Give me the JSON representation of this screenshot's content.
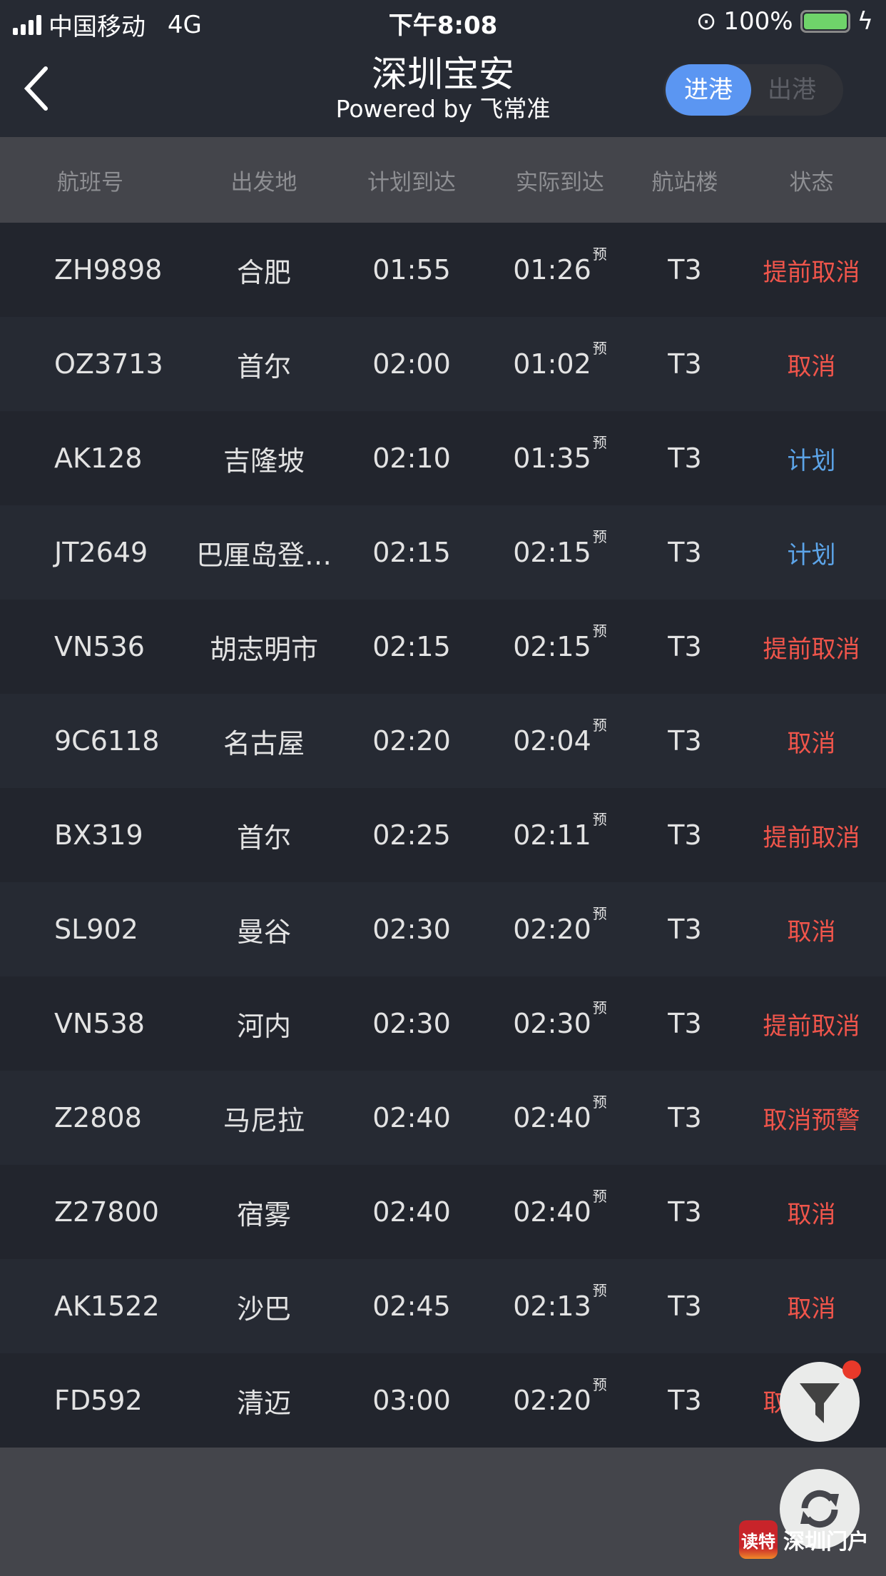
{
  "status_bar": {
    "carrier": "中国移动",
    "network": "4G",
    "time": "下午8:08",
    "battery": "100%",
    "battery_level": 1.0
  },
  "header": {
    "back_icon": "chevron-left",
    "title": "深圳宝安",
    "subtitle": "Powered by 飞常准",
    "toggle": {
      "arrivals": "进港",
      "departures": "出港",
      "selected": "进港"
    }
  },
  "colors": {
    "accent": "#5b96f2",
    "cancel": "#f0554b",
    "scheduled": "#5ca4e8"
  },
  "columns": [
    "航班号",
    "出发地",
    "计划到达",
    "实际到达",
    "航站楼",
    "状态"
  ],
  "estimate_mark": "预",
  "flights": [
    {
      "flight": "ZH9898",
      "origin": "合肥",
      "planned": "01:55",
      "actual": "01:26",
      "terminal": "T3",
      "status": "提前取消",
      "type": "cancel"
    },
    {
      "flight": "OZ3713",
      "origin": "首尔",
      "planned": "02:00",
      "actual": "01:02",
      "terminal": "T3",
      "status": "取消",
      "type": "cancel"
    },
    {
      "flight": "AK128",
      "origin": "吉隆坡",
      "planned": "02:10",
      "actual": "01:35",
      "terminal": "T3",
      "status": "计划",
      "type": "scheduled"
    },
    {
      "flight": "JT2649",
      "origin": "巴厘岛登…",
      "planned": "02:15",
      "actual": "02:15",
      "terminal": "T3",
      "status": "计划",
      "type": "scheduled"
    },
    {
      "flight": "VN536",
      "origin": "胡志明市",
      "planned": "02:15",
      "actual": "02:15",
      "terminal": "T3",
      "status": "提前取消",
      "type": "cancel"
    },
    {
      "flight": "9C6118",
      "origin": "名古屋",
      "planned": "02:20",
      "actual": "02:04",
      "terminal": "T3",
      "status": "取消",
      "type": "cancel"
    },
    {
      "flight": "BX319",
      "origin": "首尔",
      "planned": "02:25",
      "actual": "02:11",
      "terminal": "T3",
      "status": "提前取消",
      "type": "cancel"
    },
    {
      "flight": "SL902",
      "origin": "曼谷",
      "planned": "02:30",
      "actual": "02:20",
      "terminal": "T3",
      "status": "取消",
      "type": "cancel"
    },
    {
      "flight": "VN538",
      "origin": "河内",
      "planned": "02:30",
      "actual": "02:30",
      "terminal": "T3",
      "status": "提前取消",
      "type": "cancel"
    },
    {
      "flight": "Z2808",
      "origin": "马尼拉",
      "planned": "02:40",
      "actual": "02:40",
      "terminal": "T3",
      "status": "取消预警",
      "type": "cancel"
    },
    {
      "flight": "Z27800",
      "origin": "宿雾",
      "planned": "02:40",
      "actual": "02:40",
      "terminal": "T3",
      "status": "取消",
      "type": "cancel"
    },
    {
      "flight": "AK1522",
      "origin": "沙巴",
      "planned": "02:45",
      "actual": "02:13",
      "terminal": "T3",
      "status": "取消",
      "type": "cancel"
    },
    {
      "flight": "FD592",
      "origin": "清迈",
      "planned": "03:00",
      "actual": "02:20",
      "terminal": "T3",
      "status": "取消预警",
      "type": "cancel"
    }
  ],
  "fab": {
    "filter_icon": "filter",
    "refresh_icon": "refresh"
  },
  "watermark": {
    "icon_text": "读特",
    "text": "深圳门户"
  }
}
